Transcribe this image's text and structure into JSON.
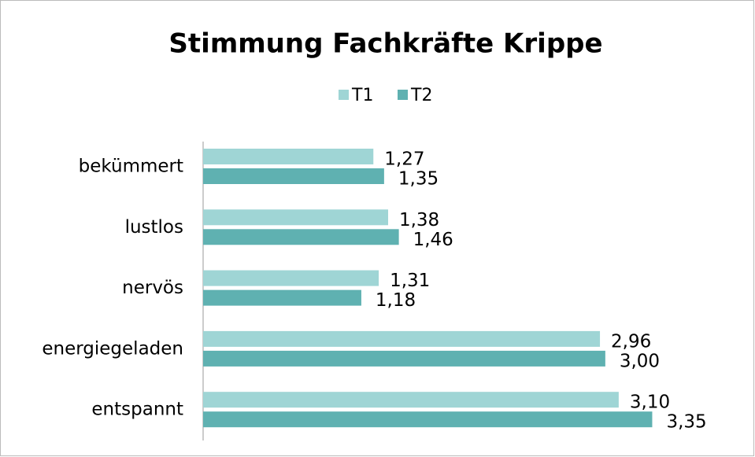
{
  "chart_data": {
    "type": "bar",
    "orientation": "horizontal",
    "title": "Stimmung Fachkräfte Krippe",
    "categories": [
      "bekümmert",
      "lustlos",
      "nervös",
      "energiegeladen",
      "entspannt"
    ],
    "series": [
      {
        "name": "T1",
        "color": "#9fd5d5",
        "values": [
          1.27,
          1.38,
          1.31,
          2.96,
          3.1
        ],
        "value_labels": [
          "1,27",
          "1,38",
          "1,31",
          "2,96",
          "3,10"
        ]
      },
      {
        "name": "T2",
        "color": "#5fb1b1",
        "values": [
          1.35,
          1.46,
          1.18,
          3.0,
          3.35
        ],
        "value_labels": [
          "1,35",
          "1,46",
          "1,18",
          "3,00",
          "3,35"
        ]
      }
    ],
    "xlim": [
      0,
      3.5
    ],
    "legend": "top"
  }
}
